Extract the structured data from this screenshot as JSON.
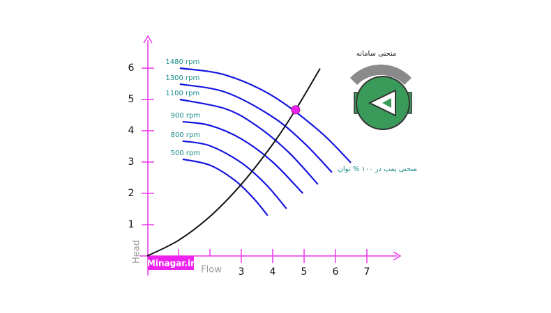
{
  "chart_data": {
    "type": "line",
    "xlabel": "Flow",
    "ylabel": "Head",
    "xlim": [
      0,
      8
    ],
    "ylim": [
      0,
      7
    ],
    "xticks": [
      3,
      4,
      5,
      6,
      7
    ],
    "xminor": [
      1,
      2
    ],
    "yticks": [
      1,
      2,
      3,
      4,
      5,
      6
    ],
    "axis_color": "#ee33ee",
    "series": [
      {
        "name": "1480 rpm",
        "color": "#1414e0",
        "x": [
          1.04,
          2.5,
          4,
          5.5,
          6.49
        ],
        "values": [
          6.0,
          5.78,
          5.11,
          3.98,
          2.98
        ]
      },
      {
        "name": "1300 rpm",
        "color": "#1414e0",
        "x": [
          1.04,
          2.5,
          4,
          5,
          5.89
        ],
        "values": [
          5.49,
          5.23,
          4.44,
          3.61,
          2.67
        ]
      },
      {
        "name": "1100 rpm",
        "color": "#1414e0",
        "x": [
          1.04,
          2.5,
          3.5,
          4.5,
          5.44
        ],
        "values": [
          5.0,
          4.7,
          4.15,
          3.32,
          2.29
        ]
      },
      {
        "name": "900 rpm",
        "color": "#1414e0",
        "x": [
          1.13,
          2,
          3,
          4,
          4.96
        ],
        "values": [
          4.29,
          4.17,
          3.74,
          3.0,
          2.0
        ]
      },
      {
        "name": "800 rpm",
        "color": "#1414e0",
        "x": [
          1.13,
          2,
          3,
          3.8,
          4.44
        ],
        "values": [
          3.67,
          3.52,
          2.98,
          2.27,
          1.51
        ]
      },
      {
        "name": "500 rpm",
        "color": "#1414e0",
        "x": [
          1.13,
          2,
          2.8,
          3.4,
          3.84
        ],
        "values": [
          3.09,
          2.9,
          2.41,
          1.83,
          1.29
        ]
      }
    ],
    "label_color": "#1a8a8a",
    "system_curve": {
      "name": "منحنی سامانه",
      "color": "#111111",
      "x": [
        0,
        1,
        2,
        3,
        4,
        4.73,
        5.51
      ],
      "values": [
        0,
        0.5,
        1.26,
        2.29,
        3.57,
        4.67,
        5.99
      ]
    },
    "operating_point": {
      "x": 4.73,
      "y": 4.67,
      "color": "#ee22ee"
    },
    "pump_curve_label": "منحنی پمپ در ۱۰۰ % توان",
    "watermark": "Minagar.ir"
  }
}
